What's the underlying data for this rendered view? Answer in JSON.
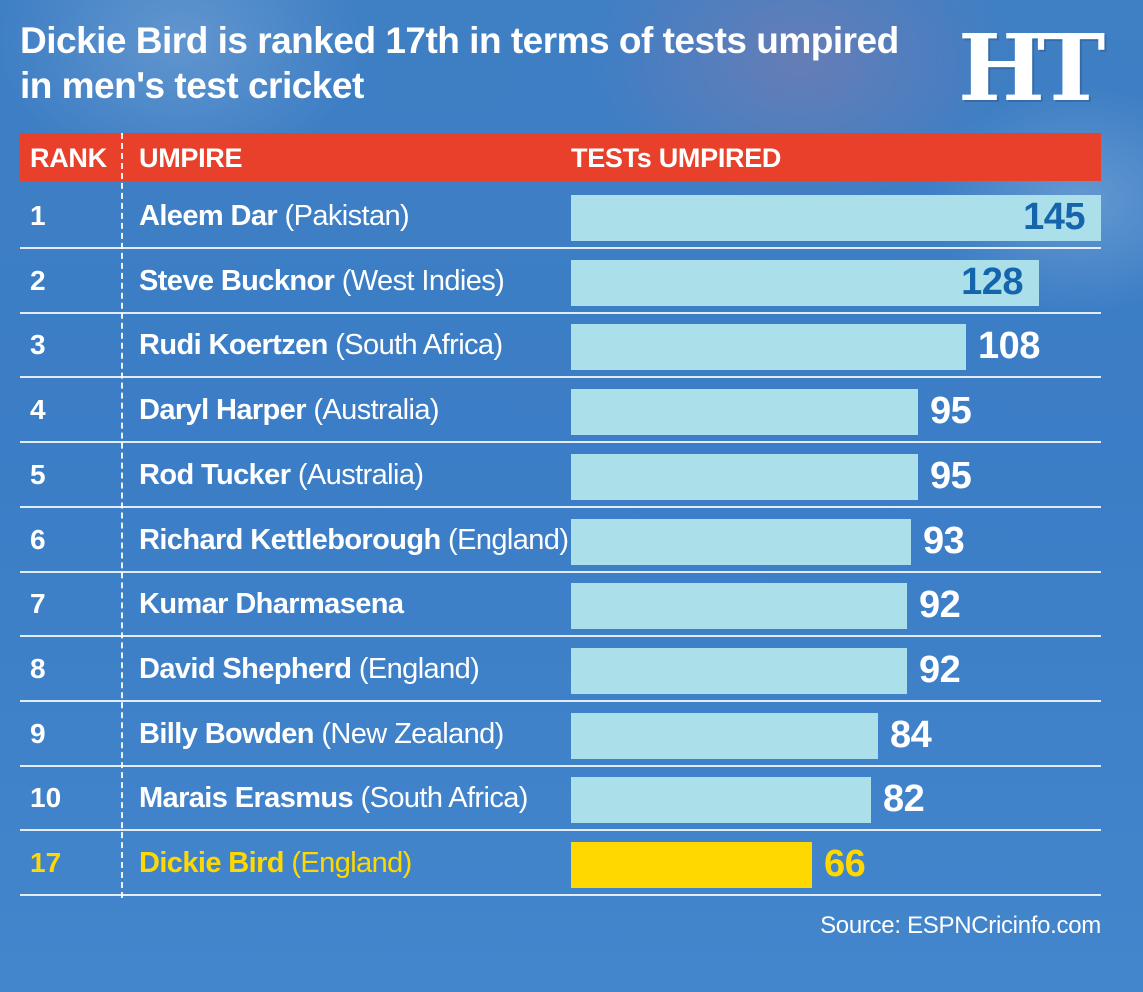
{
  "title": "Dickie Bird is ranked 17th in terms of tests umpired in men's test cricket",
  "logo_text": "HT",
  "columns": {
    "rank": "RANK",
    "umpire": "UMPIRE",
    "tests": "TESTs UMPIRED"
  },
  "colors": {
    "header_background": "#e8402a",
    "bar": "#abdfea",
    "bar_highlight": "#ffd800",
    "label_inside_bar": "#1565ad",
    "text": "#ffffff",
    "background": "#3b7dc6"
  },
  "source": "Source: ESPNCricinfo.com",
  "chart_data": {
    "type": "bar",
    "orientation": "horizontal",
    "title": "Dickie Bird is ranked 17th in terms of tests umpired in men's test cricket",
    "xlabel": "TESTs UMPIRED",
    "ylabel": "UMPIRE",
    "xlim": [
      0,
      145
    ],
    "grid": false,
    "rows": [
      {
        "rank": "1",
        "name": "Aleem Dar",
        "country": "(Pakistan)",
        "value": 145
      },
      {
        "rank": "2",
        "name": "Steve Bucknor",
        "country": "(West Indies)",
        "value": 128
      },
      {
        "rank": "3",
        "name": "Rudi Koertzen",
        "country": "(South Africa)",
        "value": 108
      },
      {
        "rank": "4",
        "name": "Daryl Harper",
        "country": "(Australia)",
        "value": 95
      },
      {
        "rank": "5",
        "name": "Rod Tucker",
        "country": "(Australia)",
        "value": 95
      },
      {
        "rank": "6",
        "name": "Richard Kettleborough",
        "country": "(England)",
        "value": 93
      },
      {
        "rank": "7",
        "name": "Kumar Dharmasena",
        "country": "",
        "value": 92
      },
      {
        "rank": "8",
        "name": "David Shepherd",
        "country": "(England)",
        "value": 92
      },
      {
        "rank": "9",
        "name": "Billy Bowden",
        "country": "(New Zealand)",
        "value": 84
      },
      {
        "rank": "10",
        "name": "Marais Erasmus",
        "country": "(South Africa)",
        "value": 82
      },
      {
        "rank": "17",
        "name": "Dickie Bird",
        "country": "(England)",
        "value": 66,
        "highlight": true
      }
    ]
  }
}
